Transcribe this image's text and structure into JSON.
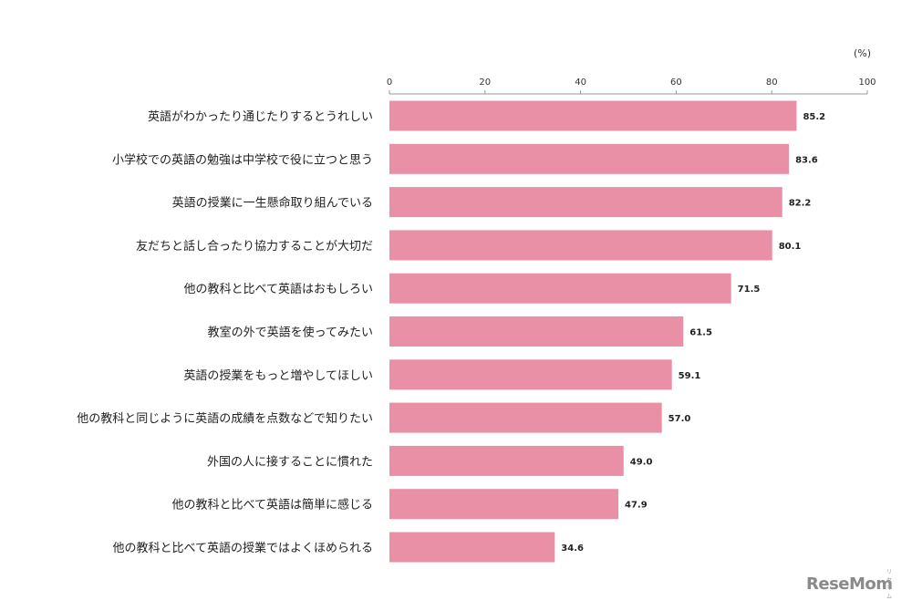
{
  "chart_data": {
    "type": "bar",
    "orientation": "horizontal",
    "unit_label": "(%)",
    "xlim": [
      0,
      100
    ],
    "ticks": [
      "0",
      "20",
      "40",
      "60",
      "80",
      "100"
    ],
    "tick_values": [
      0,
      20,
      40,
      60,
      80,
      100
    ],
    "categories": [
      "英語がわかったり通じたりするとうれしい",
      "小学校での英語の勉強は中学校で役に立つと思う",
      "英語の授業に一生懸命取り組んでいる",
      "友だちと話し合ったり協力することが大切だ",
      "他の教科と比べて英語はおもしろい",
      "教室の外で英語を使ってみたい",
      "英語の授業をもっと増やしてほしい",
      "他の教科と同じように英語の成績を点数などで知りたい",
      "外国の人に接することに慣れた",
      "他の教科と比べて英語は簡単に感じる",
      "他の教科と比べて英語の授業ではよくほめられる"
    ],
    "values": [
      85.2,
      83.6,
      82.2,
      80.1,
      71.5,
      61.5,
      59.1,
      57.0,
      49.0,
      47.9,
      34.6
    ],
    "value_labels": [
      "85.2",
      "83.6",
      "82.2",
      "80.1",
      "71.5",
      "61.5",
      "59.1",
      "57.0",
      "49.0",
      "47.9",
      "34.6"
    ],
    "bar_color": "#e98fa6",
    "grid": false,
    "legend": "none"
  },
  "watermark": {
    "text": "ReseMom",
    "kana": "リセマム"
  }
}
